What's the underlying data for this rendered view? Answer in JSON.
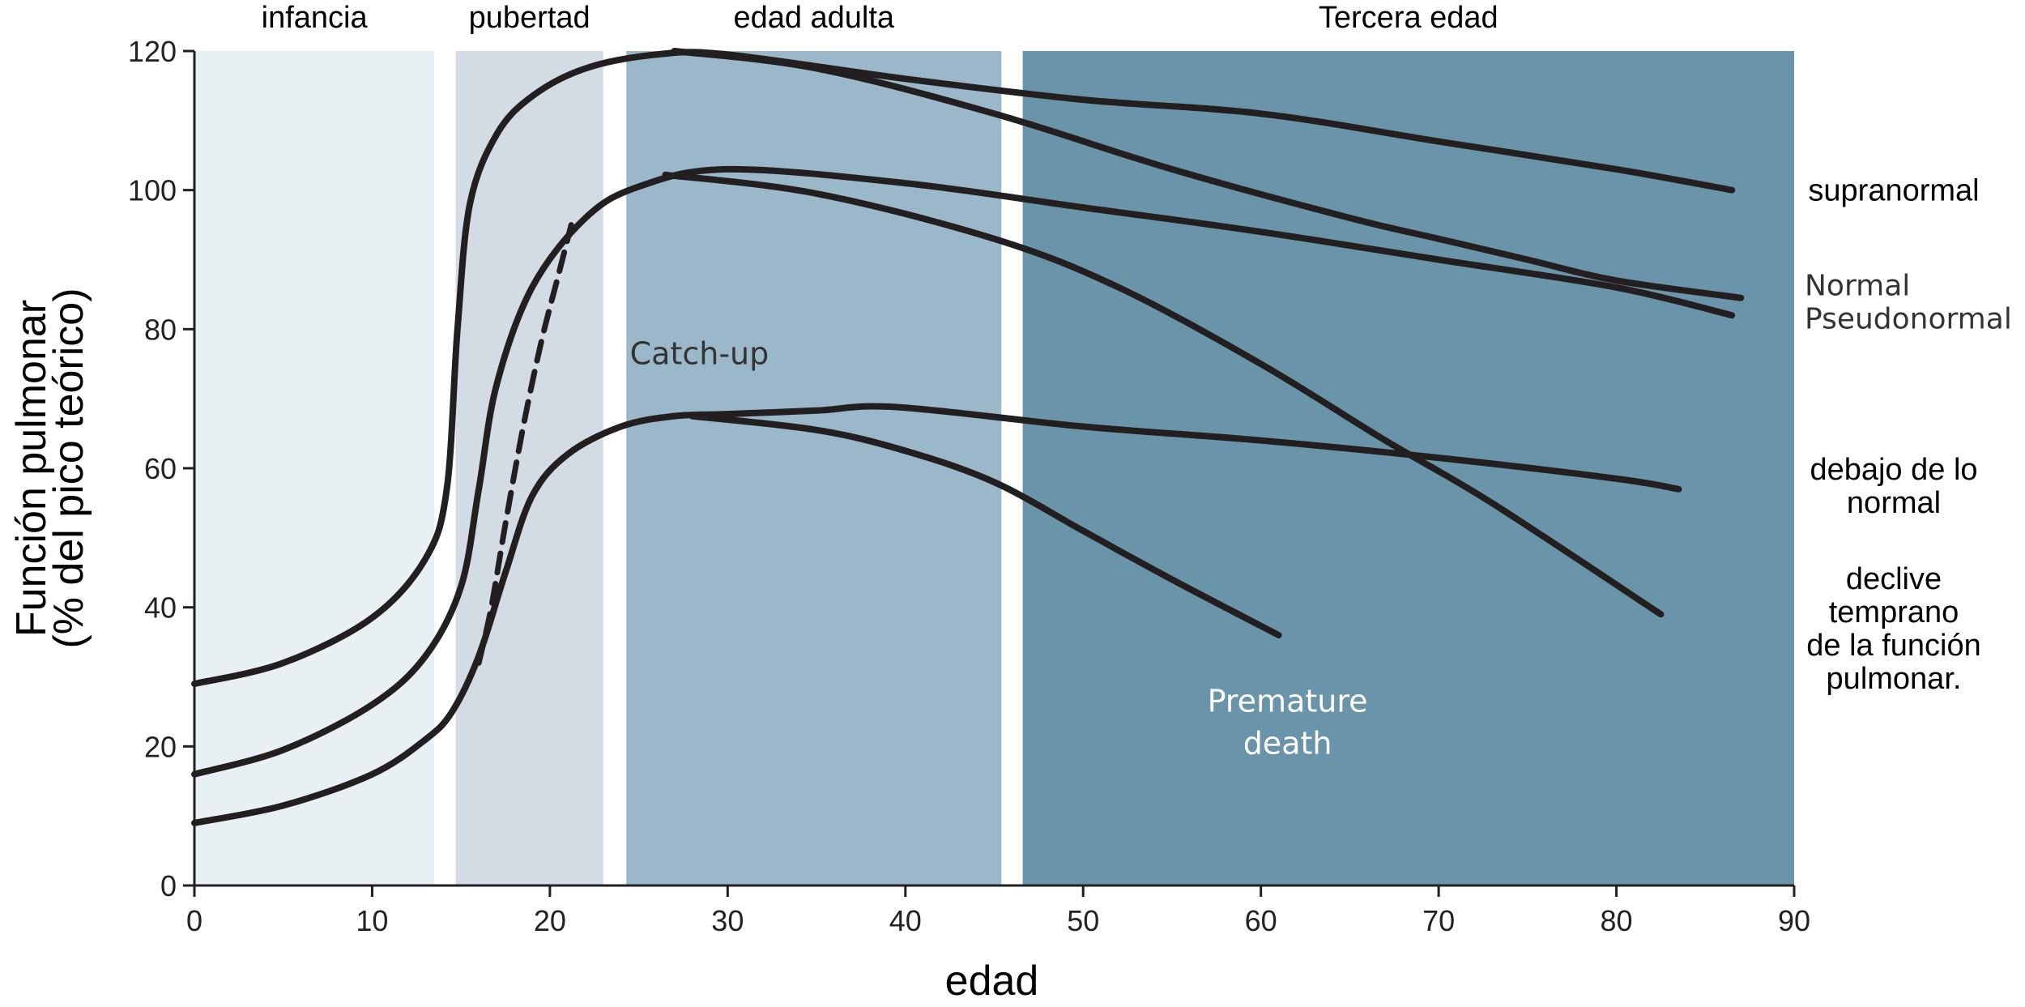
{
  "chart_data": {
    "type": "line",
    "xlabel": "edad",
    "ylabel_lines": [
      "Función pulmonar",
      "(% del pico teórico)"
    ],
    "xlim": [
      0,
      90
    ],
    "ylim": [
      0,
      120
    ],
    "x_ticks": [
      0,
      10,
      20,
      30,
      40,
      50,
      60,
      70,
      80,
      90
    ],
    "y_ticks": [
      0,
      20,
      40,
      60,
      80,
      100,
      120
    ],
    "grid": false,
    "phases": [
      {
        "label": "infancia",
        "x_start": 0,
        "x_end": 13.5,
        "color": "#e9f0f4"
      },
      {
        "label": "pubertad",
        "x_start": 14.7,
        "x_end": 23.0,
        "color": "#d3dce4"
      },
      {
        "label": "edad adulta",
        "x_start": 24.3,
        "x_end": 45.4,
        "color": "#9ab8ca"
      },
      {
        "label": "Tercera edad",
        "x_start": 46.6,
        "x_end": 90,
        "color": "#6994aa"
      }
    ],
    "series": [
      {
        "name": "supranormal",
        "style": "solid",
        "points": [
          [
            0,
            29
          ],
          [
            5,
            32
          ],
          [
            10,
            38.5
          ],
          [
            13,
            47
          ],
          [
            14.2,
            57
          ],
          [
            14.8,
            80
          ],
          [
            15.5,
            98
          ],
          [
            17,
            108
          ],
          [
            19,
            113.5
          ],
          [
            22,
            117.5
          ],
          [
            26,
            119.5
          ],
          [
            30,
            119.5
          ],
          [
            40,
            116
          ],
          [
            50,
            113
          ],
          [
            60,
            111
          ],
          [
            70,
            107
          ],
          [
            80,
            103
          ],
          [
            86.5,
            100
          ]
        ]
      },
      {
        "name": "Normal",
        "style": "solid",
        "points": [
          [
            27,
            120
          ],
          [
            35,
            117.5
          ],
          [
            45,
            111
          ],
          [
            55,
            103
          ],
          [
            65,
            96
          ],
          [
            70,
            93
          ],
          [
            75,
            90
          ],
          [
            80,
            87
          ],
          [
            87,
            84.5
          ]
        ]
      },
      {
        "name": "Pseudonormal",
        "style": "solid",
        "points": [
          [
            0,
            16
          ],
          [
            5,
            19.5
          ],
          [
            10,
            26
          ],
          [
            13,
            33
          ],
          [
            15,
            43
          ],
          [
            16,
            57
          ],
          [
            17,
            72
          ],
          [
            19,
            86
          ],
          [
            22,
            96
          ],
          [
            25,
            100.5
          ],
          [
            30,
            103
          ],
          [
            40,
            101
          ],
          [
            50,
            97.5
          ],
          [
            60,
            94
          ],
          [
            70,
            90
          ],
          [
            80,
            86
          ],
          [
            86.5,
            82
          ]
        ]
      },
      {
        "name": "declive temprano de la función pulmonar.",
        "style": "solid",
        "points": [
          [
            26.5,
            102.2
          ],
          [
            35,
            99.5
          ],
          [
            45,
            93
          ],
          [
            52,
            86
          ],
          [
            60,
            75
          ],
          [
            67,
            64
          ],
          [
            73,
            55
          ],
          [
            82.5,
            39
          ]
        ]
      },
      {
        "name": "Catch-up",
        "style": "dashed",
        "points": [
          [
            16,
            32
          ],
          [
            16.7,
            40
          ],
          [
            17.5,
            52
          ],
          [
            18.5,
            66
          ],
          [
            19.5,
            78
          ],
          [
            20.5,
            88
          ],
          [
            21.2,
            95
          ]
        ]
      },
      {
        "name": "debajo de lo normal",
        "style": "solid",
        "points": [
          [
            0,
            9
          ],
          [
            5,
            11.5
          ],
          [
            10,
            16
          ],
          [
            13,
            21
          ],
          [
            14.5,
            25
          ],
          [
            16,
            33
          ],
          [
            17.5,
            45
          ],
          [
            19,
            56
          ],
          [
            21,
            62
          ],
          [
            24,
            66
          ],
          [
            27,
            67.5
          ],
          [
            30,
            67.8
          ],
          [
            35,
            68.3
          ],
          [
            39.5,
            68.8
          ],
          [
            50,
            66
          ],
          [
            60,
            64
          ],
          [
            70,
            61.5
          ],
          [
            80,
            58.5
          ],
          [
            83.5,
            57
          ]
        ]
      },
      {
        "name": "Premature death",
        "style": "solid",
        "points": [
          [
            28,
            67.5
          ],
          [
            35,
            65.5
          ],
          [
            40,
            62.5
          ],
          [
            45,
            58
          ],
          [
            50,
            51
          ],
          [
            55,
            44
          ],
          [
            61,
            36
          ]
        ]
      }
    ],
    "annotations": [
      {
        "text": "Catch-up",
        "x": 24.5,
        "y": 75,
        "color": "#333333"
      },
      {
        "text_lines": [
          "Premature",
          "death"
        ],
        "x": 61.5,
        "y": 25,
        "color": "#ffffff"
      }
    ],
    "right_labels": [
      {
        "lines": [
          "supranormal"
        ],
        "y": 100
      },
      {
        "lines": [
          "Normal",
          "Pseudonormal"
        ],
        "y": 84
      },
      {
        "lines": [
          "debajo de lo",
          "normal"
        ],
        "y": 57.5
      },
      {
        "lines": [
          "declive",
          "temprano",
          "de la función",
          "pulmonar."
        ],
        "y": 37
      }
    ]
  }
}
